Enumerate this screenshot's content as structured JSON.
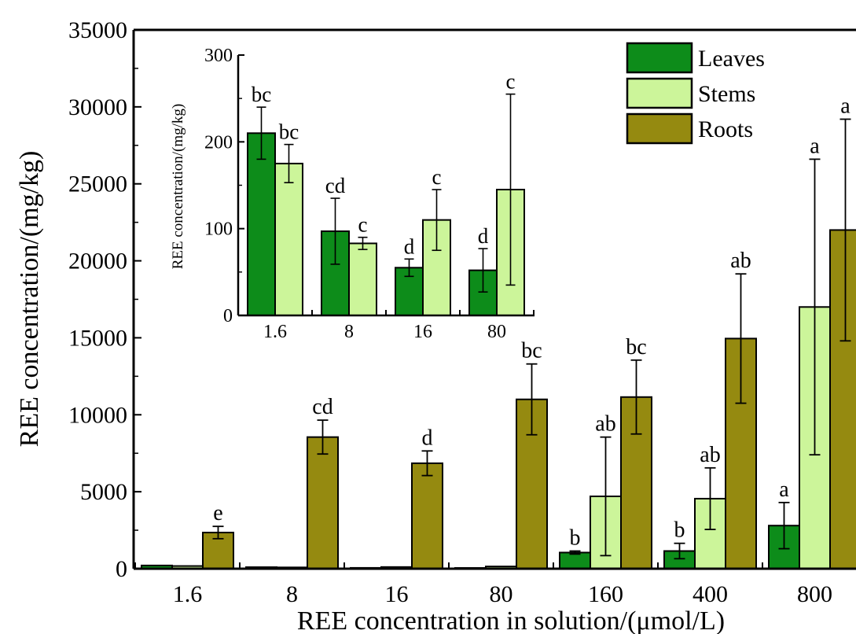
{
  "chart_data": [
    {
      "type": "bar",
      "title": "",
      "xlabel": "REE concentration in solution/(μmol/L)",
      "ylabel": "REE concentration/(mg/kg)",
      "ylim": [
        0,
        35000
      ],
      "yticks": [
        0,
        5000,
        10000,
        15000,
        20000,
        25000,
        30000,
        35000
      ],
      "categories": [
        "1.6",
        "8",
        "16",
        "80",
        "160",
        "400",
        "800"
      ],
      "legend_position": "top-right",
      "series": [
        {
          "name": "Leaves",
          "color": "#0d8c1a",
          "values": [
            210,
            100,
            55,
            50,
            1050,
            1150,
            2800
          ],
          "errors": [
            0,
            0,
            0,
            0,
            100,
            500,
            1500
          ],
          "labels": [
            "",
            "",
            "",
            "",
            "b",
            "b",
            "a"
          ]
        },
        {
          "name": "Stems",
          "color": "#ccf59a",
          "values": [
            175,
            85,
            110,
            145,
            4700,
            4550,
            17000
          ],
          "errors": [
            0,
            0,
            0,
            0,
            3850,
            2000,
            9600
          ],
          "labels": [
            "",
            "",
            "",
            "",
            "ab",
            "ab",
            "a"
          ]
        },
        {
          "name": "Roots",
          "color": "#958a10",
          "values": [
            2350,
            8550,
            6850,
            11000,
            11150,
            14950,
            22000
          ],
          "errors": [
            400,
            1100,
            800,
            2300,
            2400,
            4200,
            7200
          ],
          "labels": [
            "e",
            "cd",
            "d",
            "bc",
            "bc",
            "ab",
            "a"
          ]
        }
      ]
    },
    {
      "type": "bar",
      "title": "",
      "xlabel": "",
      "ylabel": "REE concentration/(mg/kg)",
      "ylim": [
        0,
        300
      ],
      "yticks": [
        0,
        100,
        200,
        300
      ],
      "categories": [
        "1.6",
        "8",
        "16",
        "80"
      ],
      "series": [
        {
          "name": "Leaves",
          "color": "#0d8c1a",
          "values": [
            210,
            97,
            55,
            52
          ],
          "errors": [
            30,
            38,
            10,
            25
          ],
          "labels": [
            "bc",
            "cd",
            "d",
            "d"
          ]
        },
        {
          "name": "Stems",
          "color": "#ccf59a",
          "values": [
            175,
            83,
            110,
            145
          ],
          "errors": [
            22,
            7,
            35,
            110
          ],
          "labels": [
            "bc",
            "c",
            "c",
            "c"
          ]
        }
      ]
    }
  ]
}
